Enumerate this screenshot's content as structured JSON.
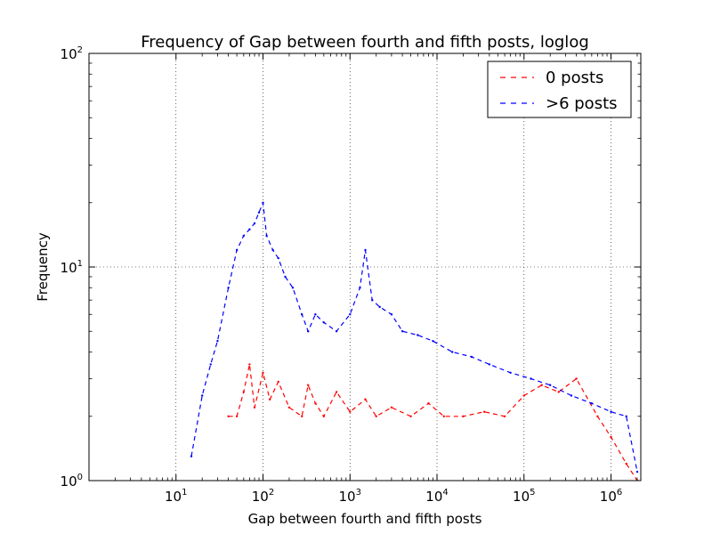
{
  "chart_data": {
    "type": "line",
    "title": "Frequency of Gap between fourth and fifth posts, loglog",
    "xlabel": "Gap between fourth and fifth posts",
    "ylabel": "Frequency",
    "xscale": "log",
    "yscale": "log",
    "xlim": [
      1,
      2200000
    ],
    "ylim": [
      1,
      100
    ],
    "xticks": [
      {
        "value": 10,
        "base": "10",
        "exp": "1"
      },
      {
        "value": 100,
        "base": "10",
        "exp": "2"
      },
      {
        "value": 1000,
        "base": "10",
        "exp": "3"
      },
      {
        "value": 10000,
        "base": "10",
        "exp": "4"
      },
      {
        "value": 100000,
        "base": "10",
        "exp": "5"
      },
      {
        "value": 1000000,
        "base": "10",
        "exp": "6"
      }
    ],
    "yticks": [
      {
        "value": 1,
        "base": "10",
        "exp": "0"
      },
      {
        "value": 10,
        "base": "10",
        "exp": "1"
      },
      {
        "value": 100,
        "base": "10",
        "exp": "2"
      }
    ],
    "grid": true,
    "legend_position": "top-right",
    "series": [
      {
        "name": "0 posts",
        "color": "#ff0000",
        "dash": "dashed",
        "x": [
          40,
          50,
          60,
          70,
          80,
          100,
          120,
          150,
          200,
          280,
          330,
          400,
          500,
          700,
          1000,
          1500,
          2000,
          3000,
          5000,
          8000,
          12000,
          20000,
          35000,
          60000,
          100000,
          160000,
          250000,
          400000,
          700000,
          1000000,
          1500000,
          2000000
        ],
        "y": [
          2,
          2,
          2.6,
          3.5,
          2.2,
          3.2,
          2.4,
          2.9,
          2.2,
          2,
          2.8,
          2.3,
          2,
          2.6,
          2.1,
          2.4,
          2,
          2.2,
          2,
          2.3,
          2,
          2,
          2.1,
          2,
          2.5,
          2.8,
          2.6,
          3,
          2,
          1.6,
          1.2,
          1
        ]
      },
      {
        "name": ">6 posts",
        "color": "#0000ff",
        "dash": "dashed",
        "x": [
          15,
          20,
          25,
          30,
          40,
          50,
          60,
          70,
          80,
          90,
          100,
          110,
          130,
          150,
          180,
          220,
          280,
          330,
          400,
          500,
          700,
          1000,
          1300,
          1500,
          1800,
          2200,
          3000,
          4000,
          6000,
          9000,
          15000,
          25000,
          40000,
          70000,
          120000,
          200000,
          350000,
          600000,
          1000000,
          1500000,
          2000000
        ],
        "y": [
          1.3,
          2.5,
          3.5,
          4.5,
          8,
          12,
          14,
          15,
          16,
          18,
          20,
          14,
          12,
          11,
          9,
          8,
          6,
          5,
          6,
          5.5,
          5,
          6,
          8,
          12,
          7,
          6.5,
          6,
          5,
          4.8,
          4.5,
          4,
          3.8,
          3.5,
          3.2,
          3,
          2.8,
          2.5,
          2.3,
          2.1,
          2,
          1.1
        ]
      }
    ]
  }
}
